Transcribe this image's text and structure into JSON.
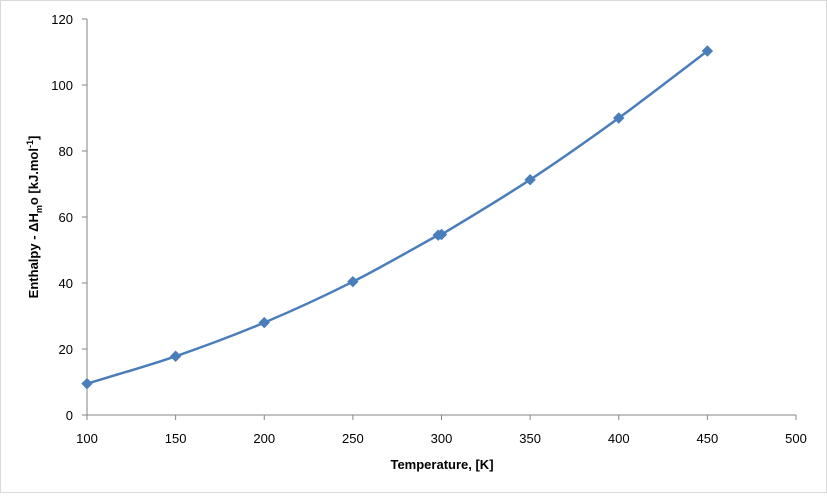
{
  "chart_data": {
    "type": "scatter",
    "xlabel": "Temperature, [K]",
    "ylabel": {
      "text": "Enthalpy - ΔHmo [kJ.mol⁻¹]",
      "parts": [
        "Enthalpy - ΔH",
        "m",
        "o [kJ.mol",
        "-1",
        "]"
      ]
    },
    "xlim": [
      100,
      500
    ],
    "ylim": [
      0,
      120
    ],
    "x_ticks": [
      100,
      150,
      200,
      250,
      300,
      350,
      400,
      450,
      500
    ],
    "y_ticks": [
      0,
      20,
      40,
      60,
      80,
      100,
      120
    ],
    "x_tick_labels": [
      "100",
      "150",
      "200",
      "250",
      "300",
      "350",
      "400",
      "450",
      "500"
    ],
    "y_tick_labels": [
      "0",
      "20",
      "40",
      "60",
      "80",
      "100",
      "120"
    ],
    "grid": false,
    "legend": "none",
    "series": [
      {
        "color": "#4a7ebb",
        "marker": "diamond",
        "smooth": true,
        "x": [
          100,
          150,
          200,
          250,
          298.15,
          300,
          350,
          400,
          450
        ],
        "y": [
          9.5,
          17.8,
          28.0,
          40.4,
          54.5,
          54.7,
          71.3,
          90.0,
          110.3
        ]
      }
    ]
  }
}
